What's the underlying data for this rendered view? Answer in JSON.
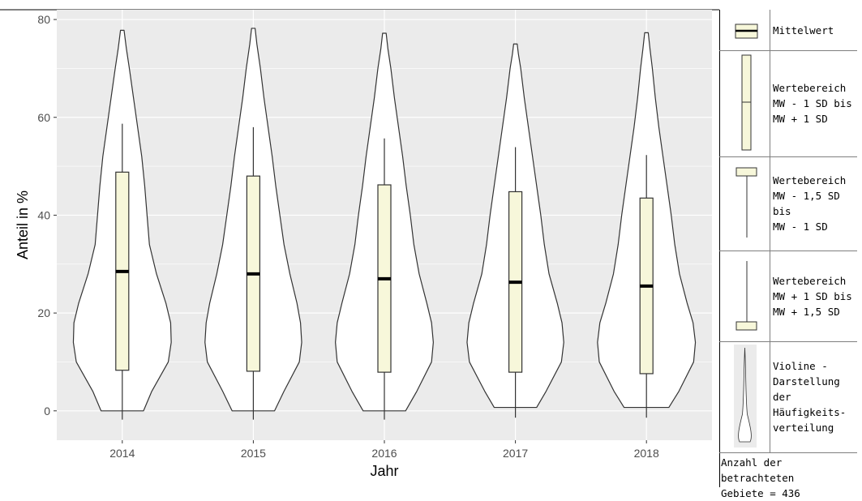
{
  "chart_data": {
    "type": "violin",
    "xlabel": "Jahr",
    "ylabel": "Anteil in %",
    "ylim": [
      -6,
      82
    ],
    "yticks": [
      0,
      20,
      40,
      60,
      80
    ],
    "categories": [
      "2014",
      "2015",
      "2016",
      "2017",
      "2018"
    ],
    "boxes": [
      {
        "year": "2014",
        "mean": 28.5,
        "box_low": 8.3,
        "box_high": 48.8,
        "whisker_low": -1.8,
        "whisker_high": 58.7
      },
      {
        "year": "2015",
        "mean": 28.0,
        "box_low": 8.1,
        "box_high": 48.0,
        "whisker_low": -1.8,
        "whisker_high": 58.0
      },
      {
        "year": "2016",
        "mean": 27.0,
        "box_low": 7.9,
        "box_high": 46.2,
        "whisker_low": -1.8,
        "whisker_high": 55.7
      },
      {
        "year": "2017",
        "mean": 26.3,
        "box_low": 7.9,
        "box_high": 44.8,
        "whisker_low": -1.4,
        "whisker_high": 53.9
      },
      {
        "year": "2018",
        "mean": 25.5,
        "box_low": 7.6,
        "box_high": 43.5,
        "whisker_low": -1.4,
        "whisker_high": 52.3
      }
    ],
    "violins": [
      {
        "year": "2014",
        "min": 0.0,
        "max": 77.8,
        "profile": [
          [
            0,
            0.36
          ],
          [
            4,
            0.5
          ],
          [
            10,
            0.78
          ],
          [
            14,
            0.83
          ],
          [
            18,
            0.82
          ],
          [
            22,
            0.74
          ],
          [
            28,
            0.58
          ],
          [
            34,
            0.46
          ],
          [
            40,
            0.42
          ],
          [
            46,
            0.38
          ],
          [
            52,
            0.33
          ],
          [
            58,
            0.26
          ],
          [
            64,
            0.19
          ],
          [
            70,
            0.12
          ],
          [
            74,
            0.07
          ],
          [
            77.8,
            0.03
          ]
        ]
      },
      {
        "year": "2015",
        "min": 0.0,
        "max": 78.2,
        "profile": [
          [
            0,
            0.36
          ],
          [
            4,
            0.52
          ],
          [
            10,
            0.78
          ],
          [
            14,
            0.82
          ],
          [
            18,
            0.8
          ],
          [
            22,
            0.74
          ],
          [
            28,
            0.62
          ],
          [
            34,
            0.52
          ],
          [
            40,
            0.45
          ],
          [
            46,
            0.38
          ],
          [
            52,
            0.32
          ],
          [
            58,
            0.25
          ],
          [
            64,
            0.18
          ],
          [
            70,
            0.12
          ],
          [
            75,
            0.06
          ],
          [
            78.2,
            0.03
          ]
        ]
      },
      {
        "year": "2016",
        "min": 0.0,
        "max": 77.2,
        "profile": [
          [
            0,
            0.36
          ],
          [
            4,
            0.55
          ],
          [
            10,
            0.8
          ],
          [
            14,
            0.83
          ],
          [
            18,
            0.8
          ],
          [
            22,
            0.72
          ],
          [
            28,
            0.59
          ],
          [
            34,
            0.5
          ],
          [
            40,
            0.44
          ],
          [
            46,
            0.37
          ],
          [
            52,
            0.31
          ],
          [
            58,
            0.24
          ],
          [
            64,
            0.17
          ],
          [
            70,
            0.11
          ],
          [
            74,
            0.06
          ],
          [
            77.2,
            0.03
          ]
        ]
      },
      {
        "year": "2017",
        "min": 0.7,
        "max": 75.0,
        "profile": [
          [
            0.7,
            0.36
          ],
          [
            4,
            0.52
          ],
          [
            10,
            0.78
          ],
          [
            14,
            0.82
          ],
          [
            18,
            0.79
          ],
          [
            22,
            0.71
          ],
          [
            28,
            0.57
          ],
          [
            34,
            0.49
          ],
          [
            40,
            0.43
          ],
          [
            46,
            0.36
          ],
          [
            52,
            0.29
          ],
          [
            58,
            0.22
          ],
          [
            64,
            0.15
          ],
          [
            70,
            0.09
          ],
          [
            73,
            0.05
          ],
          [
            75,
            0.03
          ]
        ]
      },
      {
        "year": "2018",
        "min": 0.7,
        "max": 77.3,
        "profile": [
          [
            0.7,
            0.38
          ],
          [
            4,
            0.55
          ],
          [
            10,
            0.8
          ],
          [
            14,
            0.83
          ],
          [
            18,
            0.79
          ],
          [
            22,
            0.69
          ],
          [
            28,
            0.56
          ],
          [
            34,
            0.48
          ],
          [
            40,
            0.42
          ],
          [
            46,
            0.35
          ],
          [
            52,
            0.28
          ],
          [
            58,
            0.21
          ],
          [
            64,
            0.15
          ],
          [
            70,
            0.1
          ],
          [
            74,
            0.06
          ],
          [
            77.3,
            0.03
          ]
        ]
      }
    ],
    "grid": true,
    "colors": {
      "panel": "#ebebeb",
      "grid": "#ffffff",
      "box_fill": "#f7f7da",
      "violin_fill": "#ffffff",
      "stroke": "#333333",
      "mean": "#000000"
    }
  },
  "legend": {
    "items": [
      {
        "key": "mean",
        "text": "Mittelwert"
      },
      {
        "key": "box",
        "text": "Wertebereich\nMW - 1 SD bis\nMW + 1 SD"
      },
      {
        "key": "lower_whisker",
        "text": "Wertebereich\nMW - 1,5 SD bis\nMW - 1 SD"
      },
      {
        "key": "upper_whisker",
        "text": "Wertebereich\nMW + 1 SD bis\nMW + 1,5 SD"
      },
      {
        "key": "violin",
        "text": "Violine -\nDarstellung der\nHäufigkeits-\nverteilung"
      }
    ],
    "footnote": "Anzahl der betrachteten\nGebiete = 436"
  }
}
